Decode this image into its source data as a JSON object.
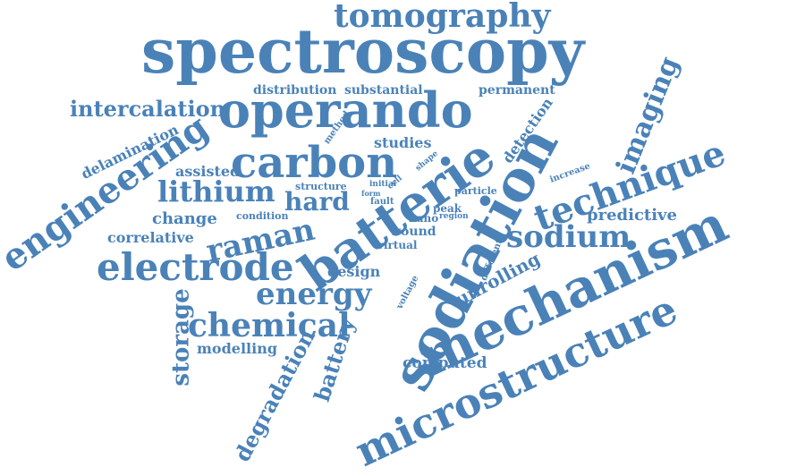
{
  "word_cloud": {
    "color": "#4a82b8",
    "words": [
      "tomography",
      "spectroscopy",
      "operando",
      "intercalation",
      "distribution",
      "substantial",
      "permanent",
      "imaging",
      "delamination",
      "method",
      "detection",
      "engineering",
      "studies",
      "carbon",
      "batterie",
      "sodiation",
      "technique",
      "assisted",
      "lithium",
      "structure",
      "hard",
      "shape",
      "initial",
      "cell",
      "form",
      "fault",
      "particle",
      "increase",
      "change",
      "condition",
      "nano",
      "region",
      "peak",
      "predictive",
      "correlative",
      "raman",
      "wound",
      "sodium",
      "virtual",
      "different",
      "electrode",
      "design",
      "unrolling",
      "energy",
      "voltage",
      "mechanism",
      "storage",
      "chemical",
      "modelling",
      "battery",
      "computed",
      "degradation",
      "microstructure"
    ]
  }
}
